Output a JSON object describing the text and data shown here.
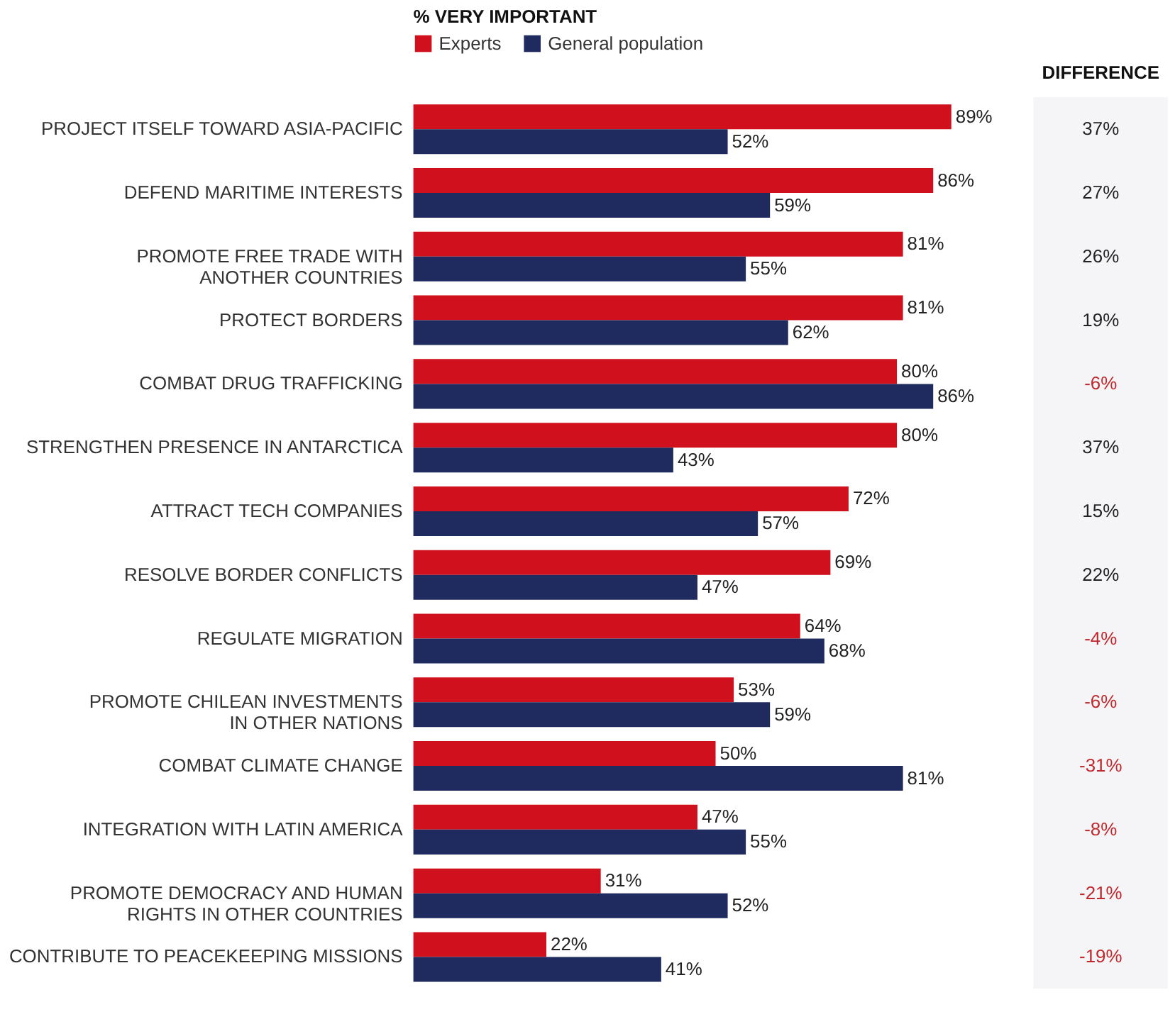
{
  "chart_data": [
    {
      "type": "bar",
      "orientation": "horizontal",
      "legend_title": "% VERY IMPORTANT",
      "legend": "top left",
      "tick_labels": "y",
      "categories": [
        "PROJECT ITSELF TOWARD ASIA-PACIFIC",
        "DEFEND MARITIME INTERESTS",
        "PROMOTE FREE TRADE WITH\nANOTHER COUNTRIES",
        "PROTECT BORDERS",
        "COMBAT DRUG TRAFFICKING",
        "STRENGTHEN PRESENCE IN ANTARCTICA",
        "ATTRACT TECH COMPANIES",
        "RESOLVE BORDER CONFLICTS",
        "REGULATE MIGRATION",
        "PROMOTE CHILEAN INVESTMENTS\nIN OTHER NATIONS",
        "COMBAT CLIMATE CHANGE",
        "INTEGRATION WITH LATIN AMERICA",
        "PROMOTE DEMOCRACY AND HUMAN\nRIGHTS IN OTHER COUNTRIES",
        "CONTRIBUTE TO PEACEKEEPING MISSIONS"
      ],
      "series": [
        {
          "name": "Experts",
          "color": "#d0101c",
          "values": [
            89,
            86,
            81,
            81,
            80,
            80,
            72,
            69,
            64,
            53,
            50,
            47,
            31,
            22
          ],
          "value_labels": [
            "89%",
            "86%",
            "81%",
            "81%",
            "80%",
            "80%",
            "72%",
            "69%",
            "64%",
            "53%",
            "50%",
            "47%",
            "31%",
            "22%"
          ]
        },
        {
          "name": "General population",
          "color": "#1f2a5e",
          "values": [
            52,
            59,
            55,
            62,
            86,
            43,
            57,
            47,
            68,
            59,
            81,
            55,
            52,
            41
          ],
          "value_labels": [
            "52%",
            "59%",
            "55%",
            "62%",
            "86%",
            "43%",
            "57%",
            "47%",
            "68%",
            "59%",
            "81%",
            "55%",
            "52%",
            "41%"
          ]
        }
      ]
    },
    {
      "type": "other",
      "title": "DIFFERENCE",
      "value_labels": [
        "37%",
        "27%",
        "26%",
        "19%",
        "-6%",
        "37%",
        "15%",
        "22%",
        "-4%",
        "-6%",
        "-31%",
        "-8%",
        "-21%",
        "-19%"
      ],
      "colors": [
        "#222222",
        "#222222",
        "#222222",
        "#222222",
        "#c0282d",
        "#222222",
        "#222222",
        "#222222",
        "#c0282d",
        "#c0282d",
        "#c0282d",
        "#c0282d",
        "#c0282d",
        "#c0282d"
      ]
    }
  ]
}
